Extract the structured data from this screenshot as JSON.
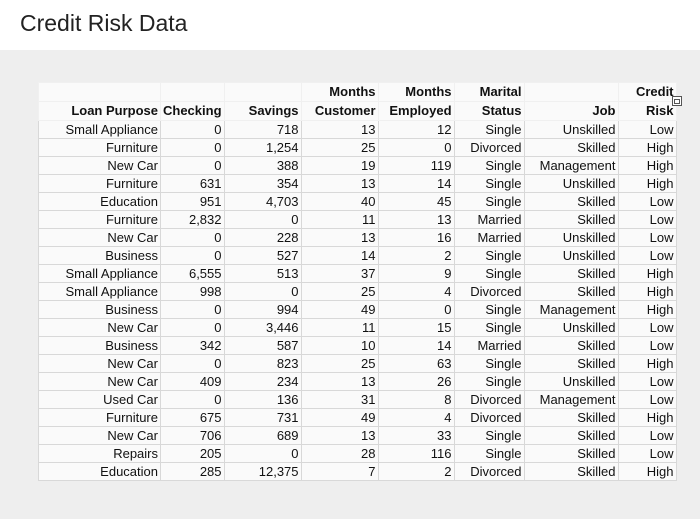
{
  "header": {
    "title": "Credit Risk Data"
  },
  "table": {
    "columns": [
      [
        "Loan Purpose"
      ],
      [
        "Checking"
      ],
      [
        "Savings"
      ],
      [
        "Months",
        "Customer"
      ],
      [
        "Months",
        "Employed"
      ],
      [
        "Marital",
        "Status"
      ],
      [
        "Job"
      ],
      [
        "Credit",
        "Risk"
      ]
    ],
    "rows": [
      [
        "Small Appliance",
        "0",
        "718",
        "13",
        "12",
        "Single",
        "Unskilled",
        "Low"
      ],
      [
        "Furniture",
        "0",
        "1,254",
        "25",
        "0",
        "Divorced",
        "Skilled",
        "High"
      ],
      [
        "New Car",
        "0",
        "388",
        "19",
        "119",
        "Single",
        "Management",
        "High"
      ],
      [
        "Furniture",
        "631",
        "354",
        "13",
        "14",
        "Single",
        "Unskilled",
        "High"
      ],
      [
        "Education",
        "951",
        "4,703",
        "40",
        "45",
        "Single",
        "Skilled",
        "Low"
      ],
      [
        "Furniture",
        "2,832",
        "0",
        "11",
        "13",
        "Married",
        "Skilled",
        "Low"
      ],
      [
        "New Car",
        "0",
        "228",
        "13",
        "16",
        "Married",
        "Unskilled",
        "Low"
      ],
      [
        "Business",
        "0",
        "527",
        "14",
        "2",
        "Single",
        "Unskilled",
        "Low"
      ],
      [
        "Small Appliance",
        "6,555",
        "513",
        "37",
        "9",
        "Single",
        "Skilled",
        "High"
      ],
      [
        "Small Appliance",
        "998",
        "0",
        "25",
        "4",
        "Divorced",
        "Skilled",
        "High"
      ],
      [
        "Business",
        "0",
        "994",
        "49",
        "0",
        "Single",
        "Management",
        "High"
      ],
      [
        "New Car",
        "0",
        "3,446",
        "11",
        "15",
        "Single",
        "Unskilled",
        "Low"
      ],
      [
        "Business",
        "342",
        "587",
        "10",
        "14",
        "Married",
        "Skilled",
        "Low"
      ],
      [
        "New Car",
        "0",
        "823",
        "25",
        "63",
        "Single",
        "Skilled",
        "High"
      ],
      [
        "New Car",
        "409",
        "234",
        "13",
        "26",
        "Single",
        "Unskilled",
        "Low"
      ],
      [
        "Used Car",
        "0",
        "136",
        "31",
        "8",
        "Divorced",
        "Management",
        "Low"
      ],
      [
        "Furniture",
        "675",
        "731",
        "49",
        "4",
        "Divorced",
        "Skilled",
        "High"
      ],
      [
        "New Car",
        "706",
        "689",
        "13",
        "33",
        "Single",
        "Skilled",
        "Low"
      ],
      [
        "Repairs",
        "205",
        "0",
        "28",
        "116",
        "Single",
        "Skilled",
        "Low"
      ],
      [
        "Education",
        "285",
        "12,375",
        "7",
        "2",
        "Divorced",
        "Skilled",
        "High"
      ]
    ]
  }
}
